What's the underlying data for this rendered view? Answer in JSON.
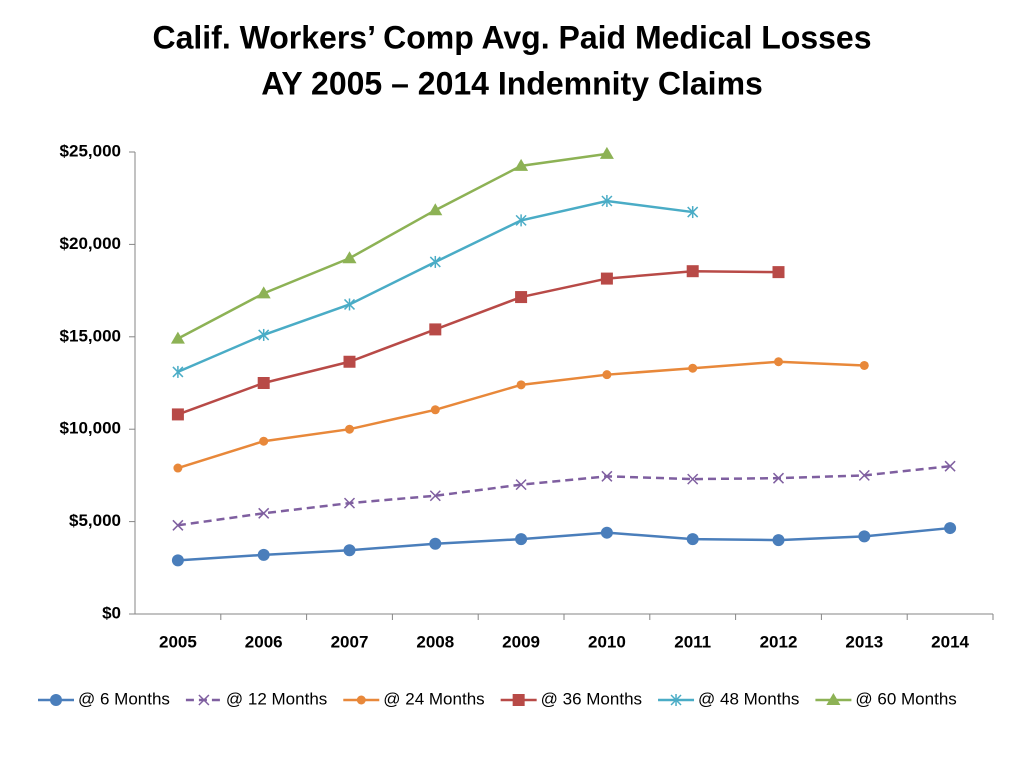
{
  "chart_data": {
    "type": "line",
    "title": "Calif. Workers’ Comp Avg. Paid Medical Losses",
    "subtitle": "AY 2005 – 2014 Indemnity Claims",
    "categories": [
      "2005",
      "2006",
      "2007",
      "2008",
      "2009",
      "2010",
      "2011",
      "2012",
      "2013",
      "2014"
    ],
    "series": [
      {
        "name": "@ 6 Months",
        "color": "#4a7ebb",
        "marker": "circle",
        "dashed": false,
        "values": [
          2900,
          3200,
          3450,
          3800,
          4050,
          4400,
          4050,
          4000,
          4200,
          4650
        ]
      },
      {
        "name": "@ 12 Months",
        "color": "#7f5fa0",
        "marker": "x",
        "dashed": true,
        "values": [
          4800,
          5450,
          6000,
          6400,
          7000,
          7450,
          7300,
          7350,
          7500,
          8000
        ]
      },
      {
        "name": "@ 24 Months",
        "color": "#e8883a",
        "marker": "small-circle",
        "dashed": false,
        "values": [
          7900,
          9350,
          10000,
          11050,
          12400,
          12950,
          13300,
          13650,
          13450,
          null
        ]
      },
      {
        "name": "@ 36 Months",
        "color": "#b84a47",
        "marker": "square",
        "dashed": false,
        "values": [
          10800,
          12500,
          13650,
          15400,
          17150,
          18150,
          18550,
          18500,
          null,
          null
        ]
      },
      {
        "name": "@ 48 Months",
        "color": "#4aacc6",
        "marker": "asterisk",
        "dashed": false,
        "values": [
          13100,
          15100,
          16750,
          19050,
          21300,
          22350,
          21750,
          null,
          null,
          null
        ]
      },
      {
        "name": "@ 60 Months",
        "color": "#8db255",
        "marker": "triangle",
        "dashed": false,
        "values": [
          14900,
          17350,
          19250,
          21850,
          24250,
          24900,
          null,
          null,
          null,
          null
        ]
      }
    ],
    "ylim": [
      0,
      25000
    ],
    "yticks": [
      {
        "value": 0,
        "label": "$0"
      },
      {
        "value": 5000,
        "label": "$5,000"
      },
      {
        "value": 10000,
        "label": "$10,000"
      },
      {
        "value": 15000,
        "label": "$15,000"
      },
      {
        "value": 20000,
        "label": "$20,000"
      },
      {
        "value": 25000,
        "label": "$25,000"
      }
    ],
    "grid": false,
    "legend": "bottom"
  }
}
